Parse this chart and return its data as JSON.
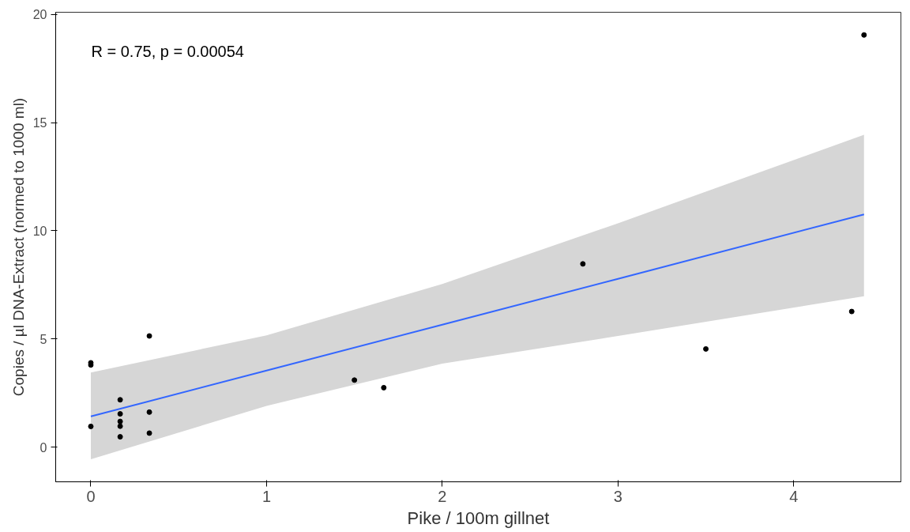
{
  "chart_data": {
    "type": "scatter",
    "xlabel": "Pike / 100m gillnet",
    "ylabel": "Copies / µl DNA-Extract (normed to 1000 ml)",
    "annotations": [
      "R = 0.75, p = 0.00054"
    ],
    "xlim": [
      -0.2,
      4.61
    ],
    "ylim": [
      -1.6,
      20.1
    ],
    "xticks": [
      0,
      1,
      2,
      3,
      4
    ],
    "yticks": [
      0,
      5,
      10,
      15,
      20
    ],
    "grid": false,
    "marker": "circle",
    "series": [
      {
        "type": "line",
        "marker": "none",
        "color": "#3366ff",
        "x": [
          0,
          1,
          2,
          3,
          4.4
        ],
        "values": [
          1.42,
          3.54,
          5.66,
          7.78,
          10.76
        ],
        "lower": [
          -0.56,
          1.91,
          3.86,
          5.14,
          6.98
        ],
        "upper": [
          3.45,
          5.17,
          7.54,
          10.35,
          14.44
        ]
      },
      {
        "color": "#000000",
        "x": [
          0,
          0,
          0,
          0.167,
          0.167,
          0.167,
          0.167,
          0.167,
          0.333,
          0.333,
          0.333,
          1.5,
          1.667,
          2.8,
          3.5,
          4.33,
          4.4
        ],
        "values": [
          3.9,
          3.8,
          0.96,
          2.19,
          1.54,
          1.19,
          0.97,
          0.48,
          5.14,
          1.62,
          0.65,
          3.1,
          2.75,
          8.47,
          4.54,
          6.27,
          19.05
        ]
      }
    ]
  }
}
